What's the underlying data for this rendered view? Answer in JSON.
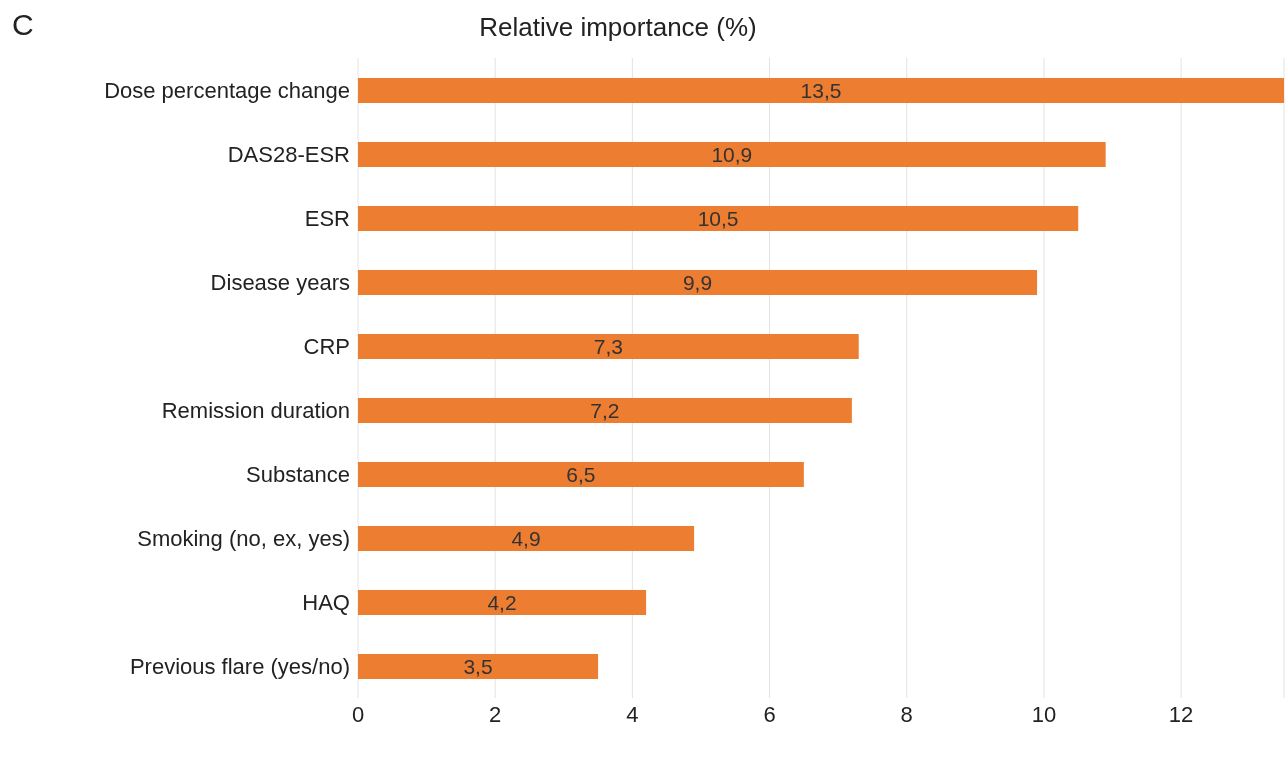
{
  "chart_data": {
    "type": "bar",
    "orientation": "horizontal",
    "title": "Relative importance (%)",
    "categories": [
      "Dose percentage change",
      "DAS28-ESR",
      "ESR",
      "Disease years",
      "CRP",
      "Remission duration",
      "Substance",
      "Smoking (no, ex, yes)",
      "HAQ",
      "Previous flare (yes/no)"
    ],
    "values": [
      13.5,
      10.9,
      10.5,
      9.9,
      7.3,
      7.2,
      6.5,
      4.9,
      4.2,
      3.5
    ],
    "value_labels": [
      "13,5",
      "10,9",
      "10,5",
      "9,9",
      "7,3",
      "7,2",
      "6,5",
      "4,9",
      "4,2",
      "3,5"
    ],
    "color": "#ed7d31",
    "xlim": [
      0,
      13.5
    ],
    "xticks": [
      0,
      2,
      4,
      6,
      8,
      10,
      12
    ],
    "grid": "x",
    "annotations": [
      "C"
    ]
  }
}
